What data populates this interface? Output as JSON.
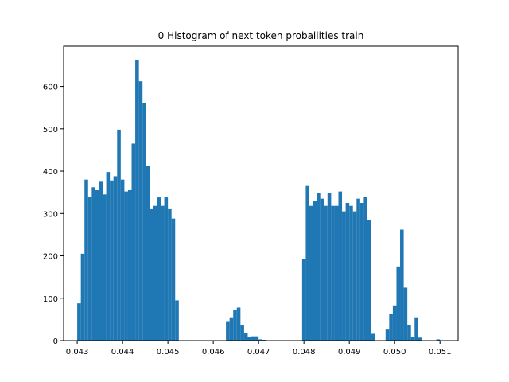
{
  "chart_data": {
    "type": "bar",
    "title": "0 Histogram of next token probailities train",
    "xlabel": "",
    "ylabel": "",
    "xlim": [
      0.0427,
      0.0514
    ],
    "ylim": [
      0,
      695
    ],
    "x_ticks": [
      0.043,
      0.044,
      0.045,
      0.046,
      0.047,
      0.048,
      0.049,
      0.05,
      0.051
    ],
    "x_tick_labels": [
      "0.043",
      "0.044",
      "0.045",
      "0.046",
      "0.047",
      "0.048",
      "0.049",
      "0.050",
      "0.051"
    ],
    "y_ticks": [
      0,
      100,
      200,
      300,
      400,
      500,
      600
    ],
    "y_tick_labels": [
      "0",
      "100",
      "200",
      "300",
      "400",
      "500",
      "600"
    ],
    "grid": false,
    "bar_color": "#1f77b4",
    "bins": {
      "start": 0.043,
      "width": 8e-05,
      "count": 100
    },
    "values": [
      88,
      205,
      380,
      340,
      362,
      355,
      375,
      345,
      398,
      378,
      388,
      498,
      380,
      352,
      355,
      465,
      662,
      612,
      560,
      412,
      312,
      318,
      338,
      318,
      338,
      312,
      288,
      95,
      0,
      0,
      0,
      0,
      0,
      0,
      0,
      0,
      0,
      0,
      0,
      0,
      0,
      46,
      55,
      73,
      78,
      36,
      18,
      8,
      10,
      10,
      3,
      2,
      0,
      0,
      0,
      0,
      0,
      0,
      0,
      0,
      0,
      0,
      192,
      365,
      318,
      330,
      348,
      335,
      318,
      348,
      318,
      318,
      352,
      305,
      325,
      318,
      305,
      335,
      325,
      340,
      285,
      16,
      0,
      0,
      0,
      26,
      62,
      83,
      175,
      262,
      125,
      36,
      8,
      55,
      7,
      0,
      0,
      0,
      0,
      0
    ],
    "extra_bins": [
      {
        "x": 0.05012,
        "value": 2
      },
      {
        "x": 0.05092,
        "value": 3
      }
    ]
  }
}
